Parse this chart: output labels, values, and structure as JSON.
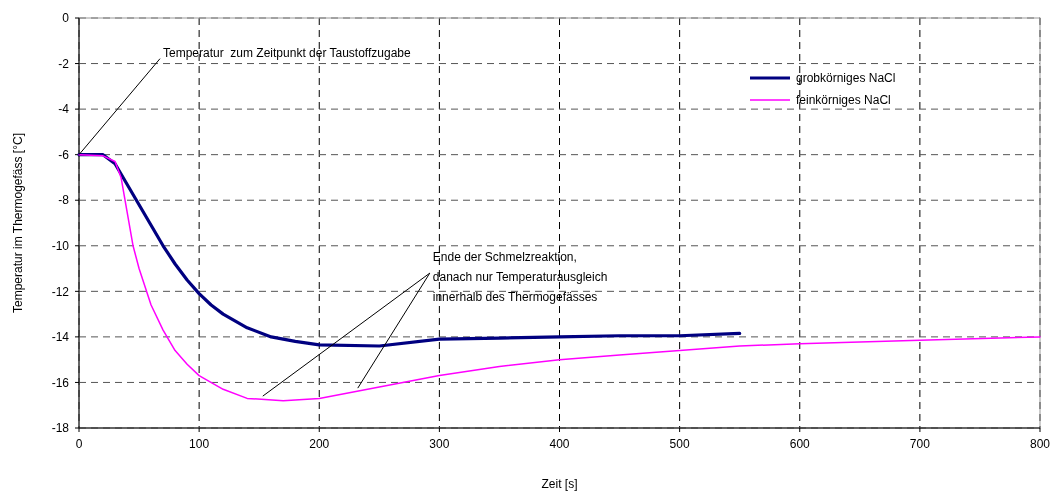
{
  "chart_data": {
    "type": "line",
    "xlabel": "Zeit [s]",
    "ylabel": "Temperatur im Thermogefäss [°C]",
    "xlim": [
      0,
      800
    ],
    "xticks": [
      0,
      100,
      200,
      300,
      400,
      500,
      600,
      700,
      800
    ],
    "ylim": [
      -18,
      0
    ],
    "yticks": [
      -18,
      -16,
      -14,
      -12,
      -10,
      -8,
      -6,
      -4,
      -2,
      0
    ],
    "grid": true,
    "legend": "top right",
    "line_style": "solid",
    "marker": "none",
    "series": [
      {
        "name": "grobkörniges NaCl",
        "color": "#000080",
        "x": [
          0,
          20,
          30,
          40,
          50,
          60,
          70,
          80,
          90,
          100,
          110,
          120,
          140,
          160,
          180,
          200,
          250,
          300,
          350,
          400,
          450,
          500,
          550
        ],
        "values": [
          -6,
          -6,
          -6.4,
          -7.3,
          -8.2,
          -9.1,
          -10,
          -10.8,
          -11.5,
          -12.1,
          -12.6,
          -13,
          -13.6,
          -14,
          -14.2,
          -14.35,
          -14.4,
          -14.1,
          -14.05,
          -14,
          -13.95,
          -13.95,
          -13.85
        ]
      },
      {
        "name": "feinkörniges NaCl",
        "color": "#ff00ff",
        "x": [
          0,
          20,
          30,
          35,
          40,
          45,
          50,
          60,
          70,
          80,
          90,
          100,
          120,
          140,
          170,
          200,
          250,
          300,
          350,
          400,
          450,
          500,
          550,
          600,
          700,
          800
        ],
        "values": [
          -6,
          -6.05,
          -6.3,
          -7,
          -8.5,
          -10,
          -11,
          -12.6,
          -13.7,
          -14.6,
          -15.2,
          -15.7,
          -16.3,
          -16.7,
          -16.8,
          -16.7,
          -16.2,
          -15.7,
          -15.3,
          -15,
          -14.8,
          -14.6,
          -14.4,
          -14.3,
          -14.15,
          -14
        ]
      }
    ],
    "annotations": [
      {
        "text": "Temperatur  zum Zeitpunkt der Taustoffzugabe",
        "x": 0,
        "y": -6
      },
      {
        "text": "Ende der Schmelzreaktion,\ndanach nur Temperaturausgleich\ninnerhalb des Thermogefässes",
        "x": 153,
        "y": -16.6
      }
    ]
  }
}
